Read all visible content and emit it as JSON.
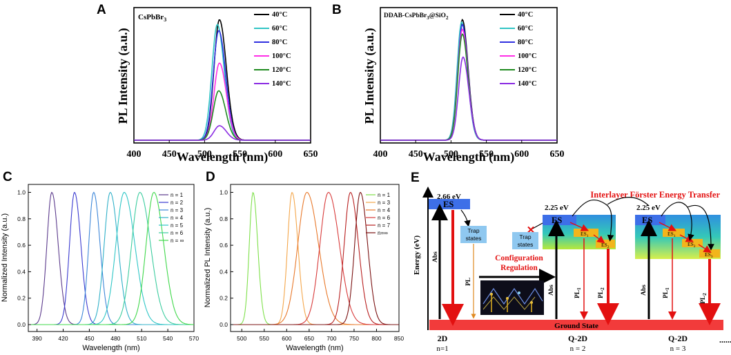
{
  "chart_data": [
    {
      "panel": "A",
      "type": "line",
      "title": "CsPbBr3",
      "xlabel": "Wavelength (nm)",
      "ylabel": "PL Intensity (a.u.)",
      "xlim": [
        400,
        650
      ],
      "xticks": [
        "400",
        "450",
        "500",
        "550",
        "600",
        "650"
      ],
      "ylim": [
        0,
        1.1
      ],
      "series": [
        {
          "name": "40°C",
          "color": "#000000",
          "center": 521,
          "width": 12,
          "peak": 1.0
        },
        {
          "name": "60°C",
          "color": "#2fc4c4",
          "center": 518,
          "width": 12,
          "peak": 0.96
        },
        {
          "name": "80°C",
          "color": "#3030e0",
          "center": 520,
          "width": 12,
          "peak": 0.91
        },
        {
          "name": "100°C",
          "color": "#ff2ee6",
          "center": 521,
          "width": 12,
          "peak": 0.64
        },
        {
          "name": "120°C",
          "color": "#1f8a1f",
          "center": 520,
          "width": 12,
          "peak": 0.41
        },
        {
          "name": "140°C",
          "color": "#8a2be2",
          "center": 521,
          "width": 12,
          "peak": 0.12
        }
      ]
    },
    {
      "panel": "B",
      "type": "line",
      "title": "DDAB-CsPbBr3@SiO2",
      "xlabel": "Wavelength (nm)",
      "ylabel": "PL Intensity (a.u.)",
      "xlim": [
        400,
        650
      ],
      "xticks": [
        "400",
        "450",
        "500",
        "550",
        "600",
        "650"
      ],
      "ylim": [
        0,
        1.1
      ],
      "series": [
        {
          "name": "40°C",
          "color": "#000000",
          "center": 516,
          "width": 10,
          "peak": 1.0
        },
        {
          "name": "60°C",
          "color": "#2fc4c4",
          "center": 515,
          "width": 10,
          "peak": 0.98
        },
        {
          "name": "80°C",
          "color": "#3030e0",
          "center": 516,
          "width": 10,
          "peak": 0.96
        },
        {
          "name": "100°C",
          "color": "#ff2ee6",
          "center": 516,
          "width": 10,
          "peak": 0.92
        },
        {
          "name": "120°C",
          "color": "#1f8a1f",
          "center": 516,
          "width": 10,
          "peak": 0.88
        },
        {
          "name": "140°C",
          "color": "#8a2be2",
          "center": 517,
          "width": 10,
          "peak": 0.69
        }
      ]
    },
    {
      "panel": "C",
      "type": "line",
      "xlabel": "Wavelength (nm)",
      "ylabel": "Normalized Intensity (a.u.)",
      "xlim": [
        380,
        570
      ],
      "xticks": [
        "390",
        "420",
        "450",
        "480",
        "510",
        "540",
        "570"
      ],
      "ylim": [
        0,
        1.0
      ],
      "yticks": [
        "0.0",
        "0.2",
        "0.4",
        "0.6",
        "0.8",
        "1.0"
      ],
      "series": [
        {
          "name": "n = 1",
          "color": "#5b3a8c",
          "center": 407,
          "width": 9,
          "peak": 1.0
        },
        {
          "name": "n = 2",
          "color": "#3a3ad0",
          "center": 433,
          "width": 9,
          "peak": 1.0
        },
        {
          "name": "n = 3",
          "color": "#3c86d8",
          "center": 455,
          "width": 9,
          "peak": 1.0
        },
        {
          "name": "n = 4",
          "color": "#2fb0c8",
          "center": 474,
          "width": 11,
          "peak": 1.0
        },
        {
          "name": "n = 5",
          "color": "#2ec6c6",
          "center": 490,
          "width": 15,
          "peak": 1.0
        },
        {
          "name": "n = 6",
          "color": "#3bcc9e",
          "center": 508,
          "width": 15,
          "peak": 1.0
        },
        {
          "name": "n = ∞",
          "color": "#3fd84a",
          "center": 524,
          "width": 14,
          "peak": 1.0
        }
      ]
    },
    {
      "panel": "D",
      "type": "line",
      "xlabel": "Wavelength (nm)",
      "ylabel": "Normalized PL Intensity (a.u.)",
      "xlim": [
        475,
        850
      ],
      "xticks": [
        "500",
        "550",
        "600",
        "650",
        "700",
        "750",
        "800",
        "850"
      ],
      "ylim": [
        0,
        1.0
      ],
      "yticks": [
        "0.0",
        "0.2",
        "0.4",
        "0.6",
        "0.8",
        "1.0"
      ],
      "series": [
        {
          "name": "n = 1",
          "color": "#7ee04a",
          "center": 525,
          "width": 13,
          "peak": 1.0
        },
        {
          "name": "n = 3",
          "color": "#f4a64a",
          "center": 612,
          "width": 16,
          "peak": 1.0
        },
        {
          "name": "n = 4",
          "color": "#e8782a",
          "center": 645,
          "width": 32,
          "peak": 1.0
        },
        {
          "name": "n = 6",
          "color": "#d83a3a",
          "center": 693,
          "width": 30,
          "peak": 1.0
        },
        {
          "name": "n = 7",
          "color": "#b81f1f",
          "center": 742,
          "width": 22,
          "peak": 1.0
        },
        {
          "name": "n=∞",
          "color": "#7a1010",
          "center": 764,
          "width": 20,
          "peak": 1.0
        }
      ]
    }
  ],
  "panels": {
    "A": {
      "label": "A",
      "title": "CsPbBr",
      "title_sub": "3"
    },
    "B": {
      "label": "B",
      "title": "DDAB-CsPbBr",
      "title_sub": "3",
      "title_tail": "@SiO",
      "title_sub2": "2"
    },
    "C": {
      "label": "C"
    },
    "D": {
      "label": "D"
    },
    "E": {
      "label": "E"
    }
  },
  "diagram": {
    "y_axis_label": "Energy (eV)",
    "title": "Interlayer Förster Energy Transfer",
    "config_label_1": "Configuration",
    "config_label_2": "Regulation",
    "ground_state": "Ground State",
    "dots": "......",
    "col1": {
      "energy": "2.66 eV",
      "es": "ES",
      "trap": "Trap",
      "trap2": "states",
      "abs": "Abs",
      "pl": "PL",
      "name": "2D",
      "n": "n=1"
    },
    "col2": {
      "energy": "2.25 eV",
      "es": "ES",
      "trap": "Trap",
      "trap2": "states",
      "es1": "ES",
      "es1sub": "1",
      "es2": "ES",
      "es2sub": "2",
      "abs": "Abs",
      "pl1": "PL",
      "pl1sub": "1",
      "pl2": "PL",
      "pl2sub": "2",
      "name": "Q-2D",
      "n": "n = 2"
    },
    "col3": {
      "energy": "2.25 eV",
      "es": "ES",
      "es1": "ES",
      "es1sub": "1",
      "es2": "ES",
      "es2sub": "2",
      "es3": "ES",
      "es3sub": "3",
      "abs": "Abs",
      "pl1": "PL",
      "pl1sub": "1",
      "pl2": "PL",
      "pl2sub": "2",
      "name": "Q-2D",
      "n": "n = 3"
    }
  }
}
